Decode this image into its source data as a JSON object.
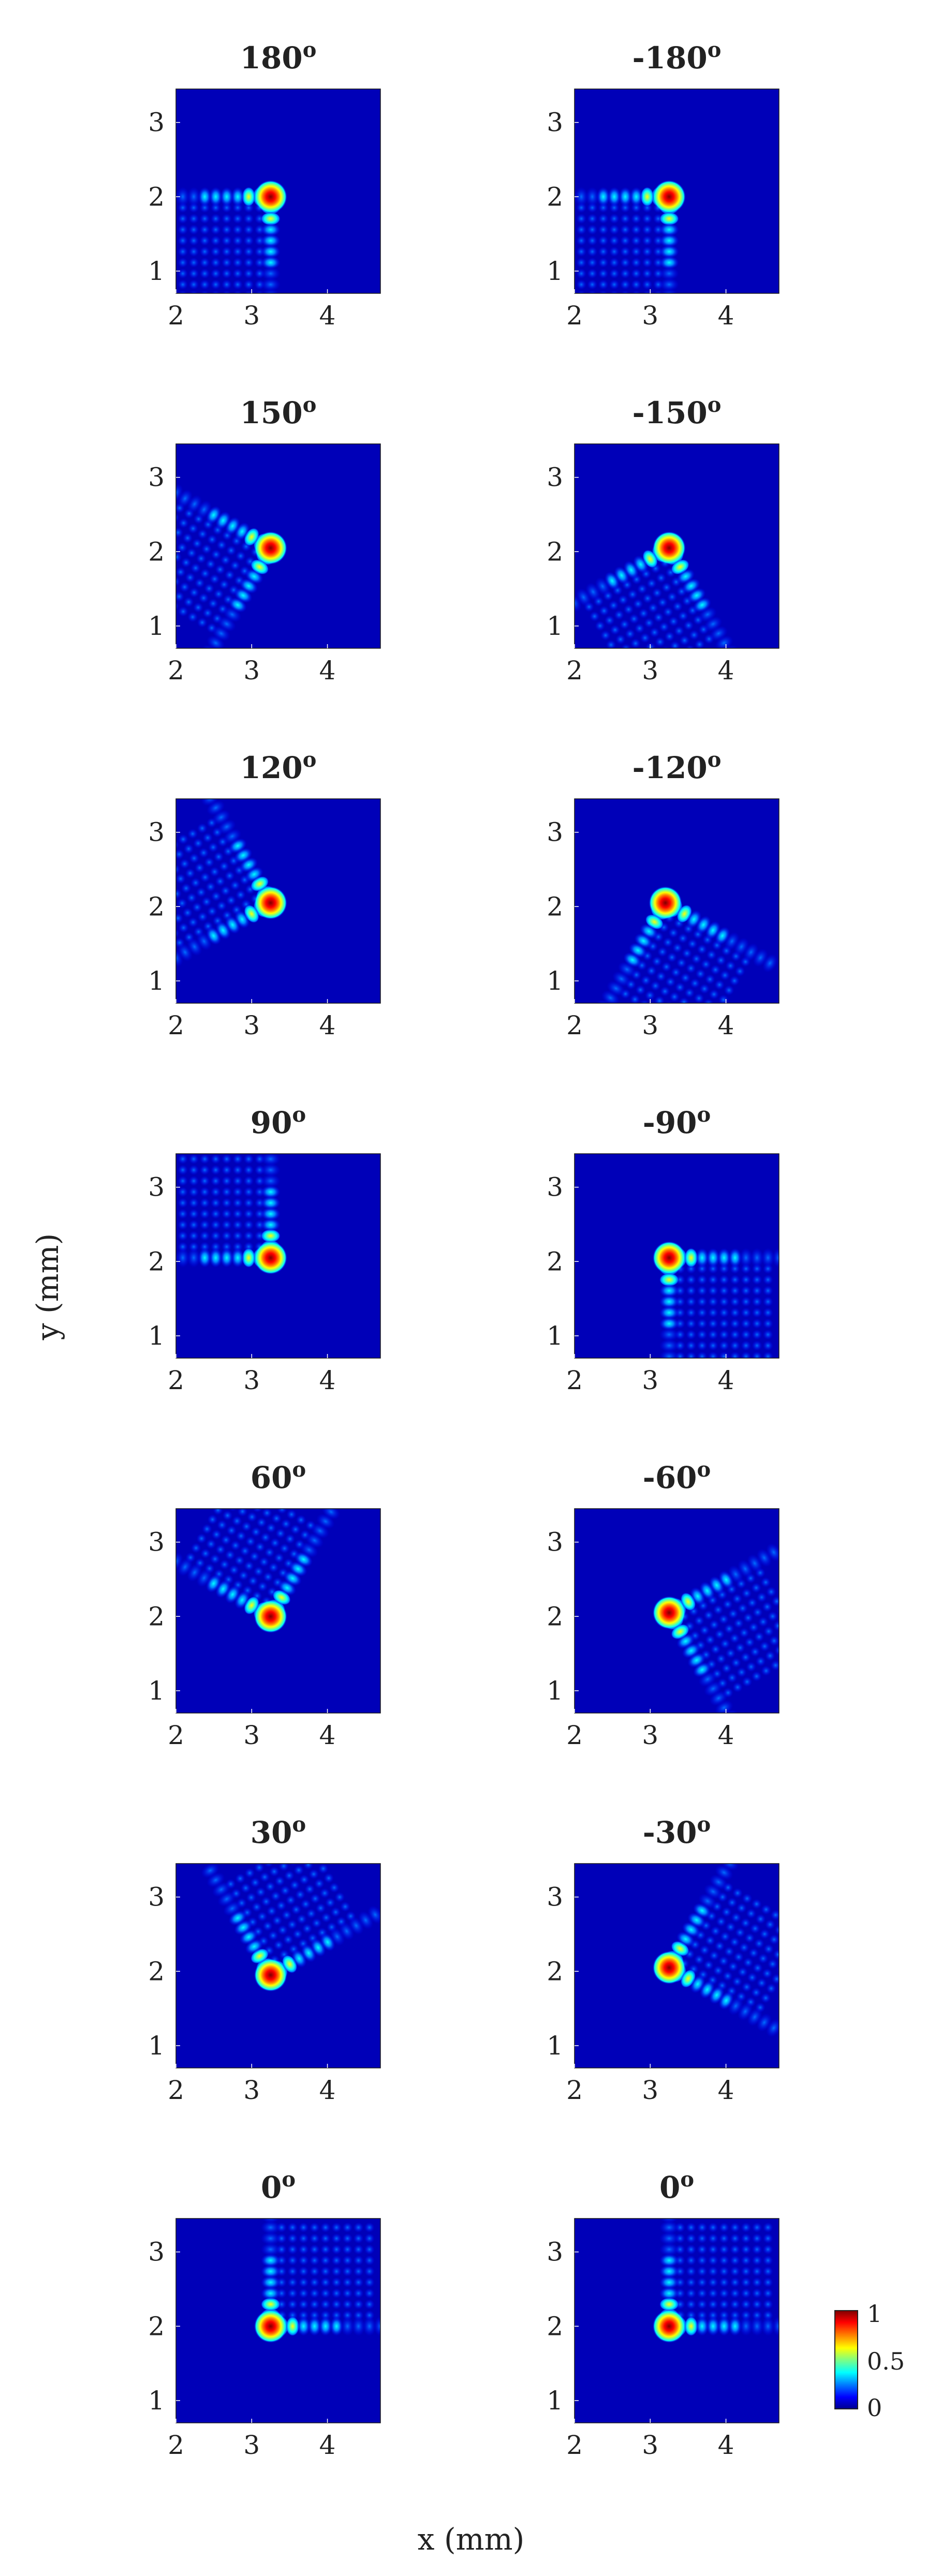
{
  "figure": {
    "ylabel": "y (mm)",
    "xlabel": "x (mm)",
    "colorbar": {
      "ticks": [
        "1",
        "0.5",
        "0"
      ],
      "colormap": [
        "#00008f",
        "#0000ff",
        "#0080ff",
        "#00ffff",
        "#80ff80",
        "#ffff00",
        "#ff8000",
        "#ff0000",
        "#800000"
      ]
    }
  },
  "chart_data": [
    {
      "type": "heatmap",
      "title": "180",
      "title_sup": "o",
      "xlim": [
        2,
        4.7
      ],
      "ylim": [
        0.7,
        3.45
      ],
      "xticks": [
        "2",
        "3",
        "4"
      ],
      "yticks": [
        "1",
        "2",
        "3"
      ],
      "peak": [
        3.25,
        2.0
      ],
      "arms_deg": [
        180,
        270
      ]
    },
    {
      "type": "heatmap",
      "title": "-180",
      "title_sup": "o",
      "xlim": [
        2,
        4.7
      ],
      "ylim": [
        0.7,
        3.45
      ],
      "xticks": [
        "2",
        "3",
        "4"
      ],
      "yticks": [
        "1",
        "2",
        "3"
      ],
      "peak": [
        3.25,
        2.0
      ],
      "arms_deg": [
        180,
        270
      ]
    },
    {
      "type": "heatmap",
      "title": "150",
      "title_sup": "o",
      "xlim": [
        2,
        4.7
      ],
      "ylim": [
        0.7,
        3.45
      ],
      "xticks": [
        "2",
        "3",
        "4"
      ],
      "yticks": [
        "1",
        "2",
        "3"
      ],
      "peak": [
        3.25,
        2.05
      ],
      "arms_deg": [
        150,
        240
      ]
    },
    {
      "type": "heatmap",
      "title": "-150",
      "title_sup": "o",
      "xlim": [
        2,
        4.7
      ],
      "ylim": [
        0.7,
        3.45
      ],
      "xticks": [
        "2",
        "3",
        "4"
      ],
      "yticks": [
        "1",
        "2",
        "3"
      ],
      "peak": [
        3.25,
        2.05
      ],
      "arms_deg": [
        210,
        300
      ]
    },
    {
      "type": "heatmap",
      "title": "120",
      "title_sup": "o",
      "xlim": [
        2,
        4.7
      ],
      "ylim": [
        0.7,
        3.45
      ],
      "xticks": [
        "2",
        "3",
        "4"
      ],
      "yticks": [
        "1",
        "2",
        "3"
      ],
      "peak": [
        3.25,
        2.05
      ],
      "arms_deg": [
        120,
        210
      ]
    },
    {
      "type": "heatmap",
      "title": "-120",
      "title_sup": "o",
      "xlim": [
        2,
        4.7
      ],
      "ylim": [
        0.7,
        3.45
      ],
      "xticks": [
        "2",
        "3",
        "4"
      ],
      "yticks": [
        "1",
        "2",
        "3"
      ],
      "peak": [
        3.2,
        2.05
      ],
      "arms_deg": [
        240,
        330
      ]
    },
    {
      "type": "heatmap",
      "title": "90",
      "title_sup": "o",
      "xlim": [
        2,
        4.7
      ],
      "ylim": [
        0.7,
        3.45
      ],
      "xticks": [
        "2",
        "3",
        "4"
      ],
      "yticks": [
        "1",
        "2",
        "3"
      ],
      "peak": [
        3.25,
        2.05
      ],
      "arms_deg": [
        90,
        180
      ]
    },
    {
      "type": "heatmap",
      "title": "-90",
      "title_sup": "o",
      "xlim": [
        2,
        4.7
      ],
      "ylim": [
        0.7,
        3.45
      ],
      "xticks": [
        "2",
        "3",
        "4"
      ],
      "yticks": [
        "1",
        "2",
        "3"
      ],
      "peak": [
        3.25,
        2.05
      ],
      "arms_deg": [
        270,
        0
      ]
    },
    {
      "type": "heatmap",
      "title": "60",
      "title_sup": "o",
      "xlim": [
        2,
        4.7
      ],
      "ylim": [
        0.7,
        3.45
      ],
      "xticks": [
        "2",
        "3",
        "4"
      ],
      "yticks": [
        "1",
        "2",
        "3"
      ],
      "peak": [
        3.25,
        2.0
      ],
      "arms_deg": [
        60,
        150
      ]
    },
    {
      "type": "heatmap",
      "title": "-60",
      "title_sup": "o",
      "xlim": [
        2,
        4.7
      ],
      "ylim": [
        0.7,
        3.45
      ],
      "xticks": [
        "2",
        "3",
        "4"
      ],
      "yticks": [
        "1",
        "2",
        "3"
      ],
      "peak": [
        3.25,
        2.05
      ],
      "arms_deg": [
        30,
        300
      ]
    },
    {
      "type": "heatmap",
      "title": "30",
      "title_sup": "o",
      "xlim": [
        2,
        4.7
      ],
      "ylim": [
        0.7,
        3.45
      ],
      "xticks": [
        "2",
        "3",
        "4"
      ],
      "yticks": [
        "1",
        "2",
        "3"
      ],
      "peak": [
        3.25,
        1.95
      ],
      "arms_deg": [
        30,
        120
      ]
    },
    {
      "type": "heatmap",
      "title": "-30",
      "title_sup": "o",
      "xlim": [
        2,
        4.7
      ],
      "ylim": [
        0.7,
        3.45
      ],
      "xticks": [
        "2",
        "3",
        "4"
      ],
      "yticks": [
        "1",
        "2",
        "3"
      ],
      "peak": [
        3.25,
        2.05
      ],
      "arms_deg": [
        60,
        330
      ]
    },
    {
      "type": "heatmap",
      "title": "0",
      "title_sup": "o",
      "xlim": [
        2,
        4.7
      ],
      "ylim": [
        0.7,
        3.45
      ],
      "xticks": [
        "2",
        "3",
        "4"
      ],
      "yticks": [
        "1",
        "2",
        "3"
      ],
      "peak": [
        3.25,
        2.0
      ],
      "arms_deg": [
        0,
        90
      ]
    },
    {
      "type": "heatmap",
      "title": "0",
      "title_sup": "o",
      "xlim": [
        2,
        4.7
      ],
      "ylim": [
        0.7,
        3.45
      ],
      "xticks": [
        "2",
        "3",
        "4"
      ],
      "yticks": [
        "1",
        "2",
        "3"
      ],
      "peak": [
        3.25,
        2.0
      ],
      "arms_deg": [
        0,
        90
      ]
    }
  ]
}
